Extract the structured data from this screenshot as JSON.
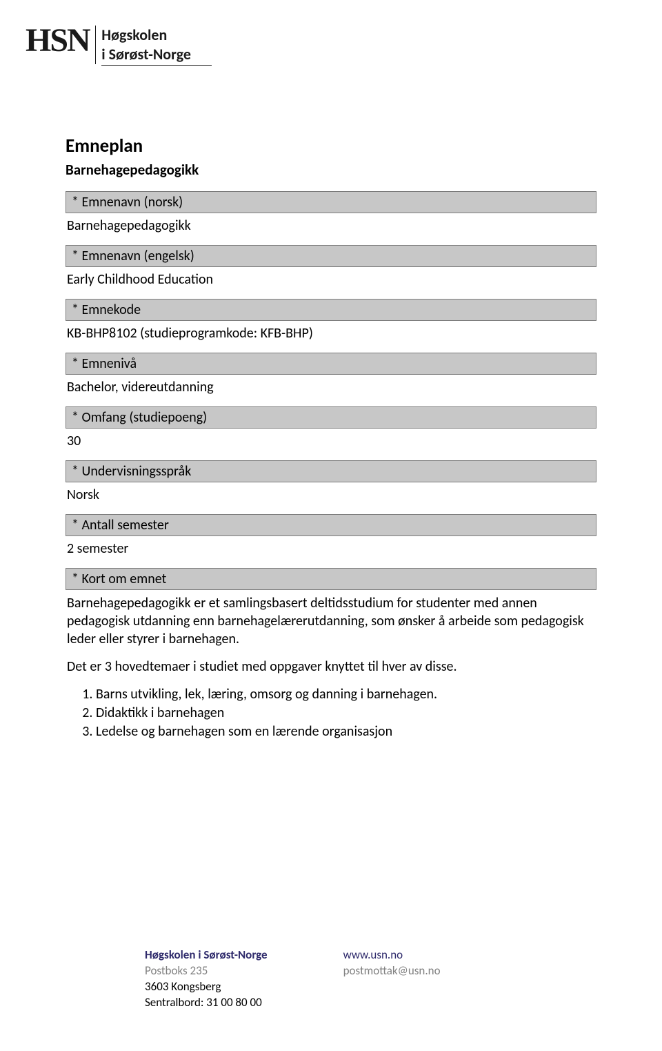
{
  "logo": {
    "mark": "HSN",
    "line1": "Høgskolen",
    "line2": "i Sørøst-Norge"
  },
  "document": {
    "title": "Emneplan",
    "subtitle": "Barnehagepedagogikk"
  },
  "fields": {
    "emnenavn_norsk": {
      "label": "* Emnenavn (norsk)",
      "value": "Barnehagepedagogikk"
    },
    "emnenavn_engelsk": {
      "label": "* Emnenavn (engelsk)",
      "value": "Early Childhood Education"
    },
    "emnekode": {
      "label": "* Emnekode",
      "value": "KB-BHP8102 (studieprogramkode: KFB-BHP)"
    },
    "emneniva": {
      "label": "* Emnenivå",
      "value": "Bachelor, videreutdanning"
    },
    "omfang": {
      "label": "* Omfang (studiepoeng)",
      "value": "30"
    },
    "undervisningssprak": {
      "label": "* Undervisningsspråk",
      "value": "Norsk"
    },
    "antall_semester": {
      "label": "* Antall semester",
      "value": "2 semester"
    },
    "kort_om_emnet": {
      "label": "* Kort om emnet"
    }
  },
  "description": {
    "para1": "Barnehagepedagogikk er et samlingsbasert deltidsstudium for studenter med annen pedagogisk utdanning enn barnehagelærerutdanning, som ønsker å arbeide som pedagogisk leder eller styrer i barnehagen.",
    "para2": "Det er 3 hovedtemaer i studiet med oppgaver knyttet til hver av disse.",
    "themes": [
      "Barns utvikling, lek, læring, omsorg og danning i barnehagen.",
      "Didaktikk i barnehagen",
      "Ledelse og barnehagen som en lærende organisasjon"
    ]
  },
  "footer": {
    "org": "Høgskolen i Sørøst-Norge",
    "address1": "Postboks 235",
    "address2": "3603 Kongsberg",
    "phone": "Sentralbord: 31 00 80 00",
    "url": "www.usn.no",
    "email": "postmottak@usn.no"
  },
  "colors": {
    "label_bg": "#c7c7c7",
    "label_border": "#7a7a7a",
    "accent": "#2e2a6b",
    "grey": "#808080",
    "text": "#000000",
    "bg": "#ffffff"
  }
}
